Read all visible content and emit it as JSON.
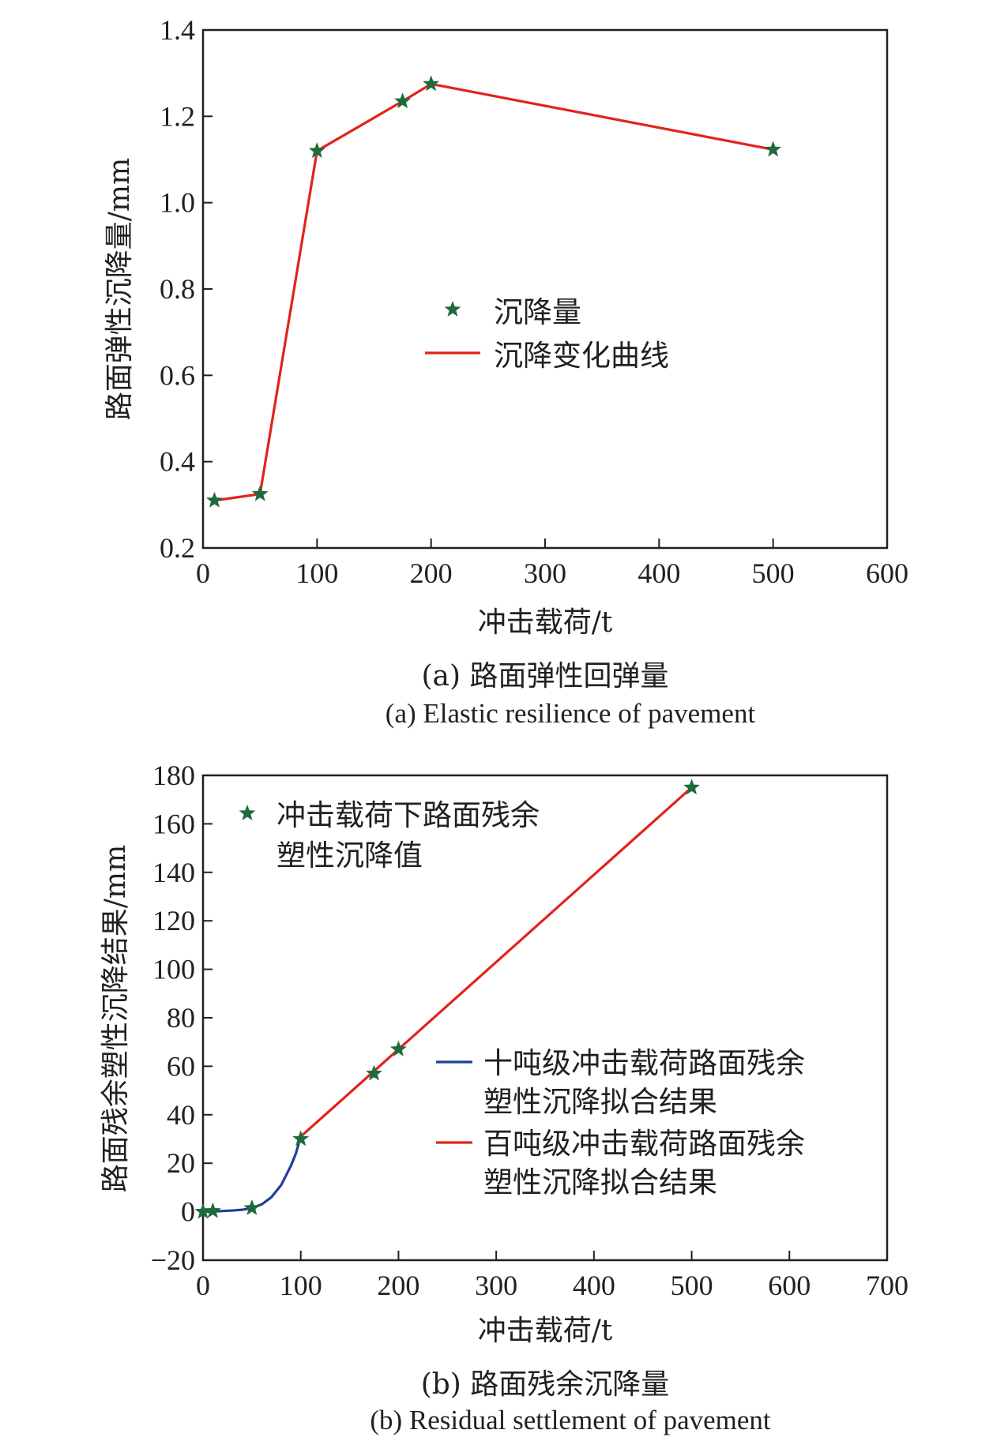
{
  "chart_data": [
    {
      "type": "line",
      "xlabel": "冲击载荷/t",
      "ylabel": "路面弹性沉降量/mm",
      "xlim": [
        0,
        600
      ],
      "ylim": [
        0.2,
        1.4
      ],
      "xticks": [
        "0",
        "100",
        "200",
        "300",
        "400",
        "500",
        "600"
      ],
      "yticks": [
        "0.2",
        "0.4",
        "0.6",
        "0.8",
        "1.0",
        "1.2",
        "1.4"
      ],
      "grid": false,
      "legend_position": "center",
      "caption_cn": "(a) 路面弹性回弹量",
      "caption_en": "(a) Elastic resilience of pavement",
      "series": [
        {
          "name": "沉降量",
          "kind": "marker",
          "marker": "star",
          "color": "#1e6b3a",
          "x": [
            10,
            50,
            100,
            175,
            200,
            500
          ],
          "y": [
            0.31,
            0.325,
            1.12,
            1.235,
            1.275,
            1.123
          ]
        },
        {
          "name": "沉降变化曲线",
          "kind": "line",
          "color": "#e2231a",
          "x": [
            10,
            50,
            100,
            175,
            200,
            500
          ],
          "y": [
            0.31,
            0.325,
            1.12,
            1.235,
            1.275,
            1.123
          ]
        }
      ]
    },
    {
      "type": "line",
      "xlabel": "冲击载荷/t",
      "ylabel": "路面残余塑性沉降结果/mm",
      "xlim": [
        0,
        700
      ],
      "ylim": [
        -20,
        180
      ],
      "xticks": [
        "0",
        "100",
        "200",
        "300",
        "400",
        "500",
        "600",
        "700"
      ],
      "yticks": [
        "−20",
        "0",
        "20",
        "40",
        "60",
        "80",
        "100",
        "120",
        "140",
        "160",
        "180"
      ],
      "grid": false,
      "legend_position": "top-left and right",
      "caption_cn": "(b) 路面残余沉降量",
      "caption_en": "(b) Residual settlement of pavement",
      "series": [
        {
          "name_lines": [
            "冲击载荷下路面残余",
            "塑性沉降值"
          ],
          "kind": "marker",
          "marker": "star",
          "color": "#1e6b3a",
          "x": [
            0,
            10,
            50,
            100,
            175,
            200,
            500
          ],
          "y": [
            0,
            0.3,
            1.5,
            30,
            57,
            67,
            175
          ]
        },
        {
          "name_lines": [
            "十吨级冲击载荷路面残余",
            "塑性沉降拟合结果"
          ],
          "kind": "line",
          "color": "#1f3f99",
          "x": [
            0,
            10,
            20,
            30,
            40,
            50,
            60,
            70,
            80,
            85,
            90,
            95,
            100
          ],
          "y": [
            0,
            0.1,
            0.3,
            0.5,
            0.8,
            1.5,
            3,
            6,
            11,
            15,
            19,
            24,
            31
          ]
        },
        {
          "name_lines": [
            "百吨级冲击载荷路面残余",
            "塑性沉降拟合结果"
          ],
          "kind": "line",
          "color": "#e2231a",
          "x": [
            100,
            500
          ],
          "y": [
            31,
            175
          ]
        }
      ]
    }
  ]
}
